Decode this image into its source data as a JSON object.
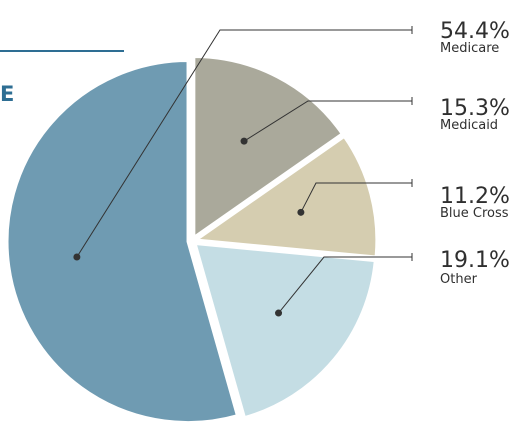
{
  "header": {
    "title_fragment": "E"
  },
  "colors": {
    "accent": "#2e6e93"
  },
  "chart_data": {
    "type": "pie",
    "title": "",
    "start_angle_deg": 0,
    "direction": "clockwise",
    "slices": [
      {
        "label": "Medicaid",
        "value": 15.3,
        "display": "15.3%",
        "color": "#aaa99b"
      },
      {
        "label": "Blue Cross",
        "value": 11.2,
        "display": "11.2%",
        "color": "#d5cdb0"
      },
      {
        "label": "Other",
        "value": 19.1,
        "display": "19.1%",
        "color": "#c4dde4"
      },
      {
        "label": "Medicare",
        "value": 54.4,
        "display": "54.4%",
        "color": "#6f9bb2"
      }
    ],
    "legend": "right"
  }
}
